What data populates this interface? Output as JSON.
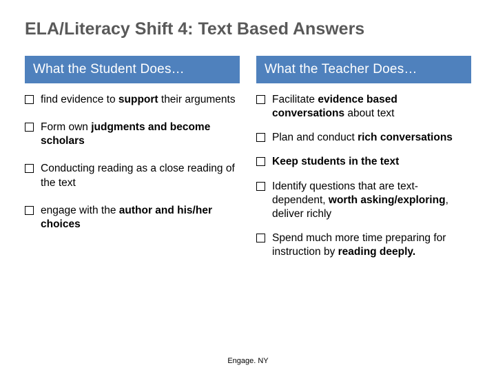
{
  "title": "ELA/Literacy Shift 4: Text Based Answers",
  "colors": {
    "header_bg": "#4f81bd",
    "header_text": "#ffffff",
    "title_text": "#595959",
    "body_text": "#000000",
    "background": "#ffffff"
  },
  "typography": {
    "title_fontsize": 25,
    "header_fontsize": 19,
    "body_fontsize": 15.5,
    "footer_fontsize": 11
  },
  "columns": {
    "left": {
      "header": "What the Student Does…",
      "items": [
        {
          "pre": "find evidence to ",
          "bold1": "support",
          "mid": " their arguments",
          "bold2": "",
          "post": ""
        },
        {
          "pre": "Form own ",
          "bold1": "judgments and become scholars",
          "mid": "",
          "bold2": "",
          "post": ""
        },
        {
          "pre": "Conducting reading as a close reading of the text",
          "bold1": "",
          "mid": "",
          "bold2": "",
          "post": ""
        },
        {
          "pre": "engage with the ",
          "bold1": "author and his/her choices",
          "mid": "",
          "bold2": "",
          "post": ""
        }
      ]
    },
    "right": {
      "header": "What the Teacher Does…",
      "items": [
        {
          "pre": "Facilitate ",
          "bold1": "evidence based conversations",
          "mid": " about text",
          "bold2": "",
          "post": ""
        },
        {
          "pre": "Plan and conduct ",
          "bold1": "rich conversations",
          "mid": "",
          "bold2": "",
          "post": ""
        },
        {
          "pre": "",
          "bold1": "Keep students in the text",
          "mid": "",
          "bold2": "",
          "post": ""
        },
        {
          "pre": "Identify questions that are text-dependent, ",
          "bold1": "worth asking/exploring",
          "mid": ", deliver richly",
          "bold2": "",
          "post": ""
        },
        {
          "pre": "Spend much more time preparing for instruction by ",
          "bold1": "reading deeply.",
          "mid": "",
          "bold2": "",
          "post": ""
        }
      ]
    }
  },
  "footer": "Engage. NY"
}
